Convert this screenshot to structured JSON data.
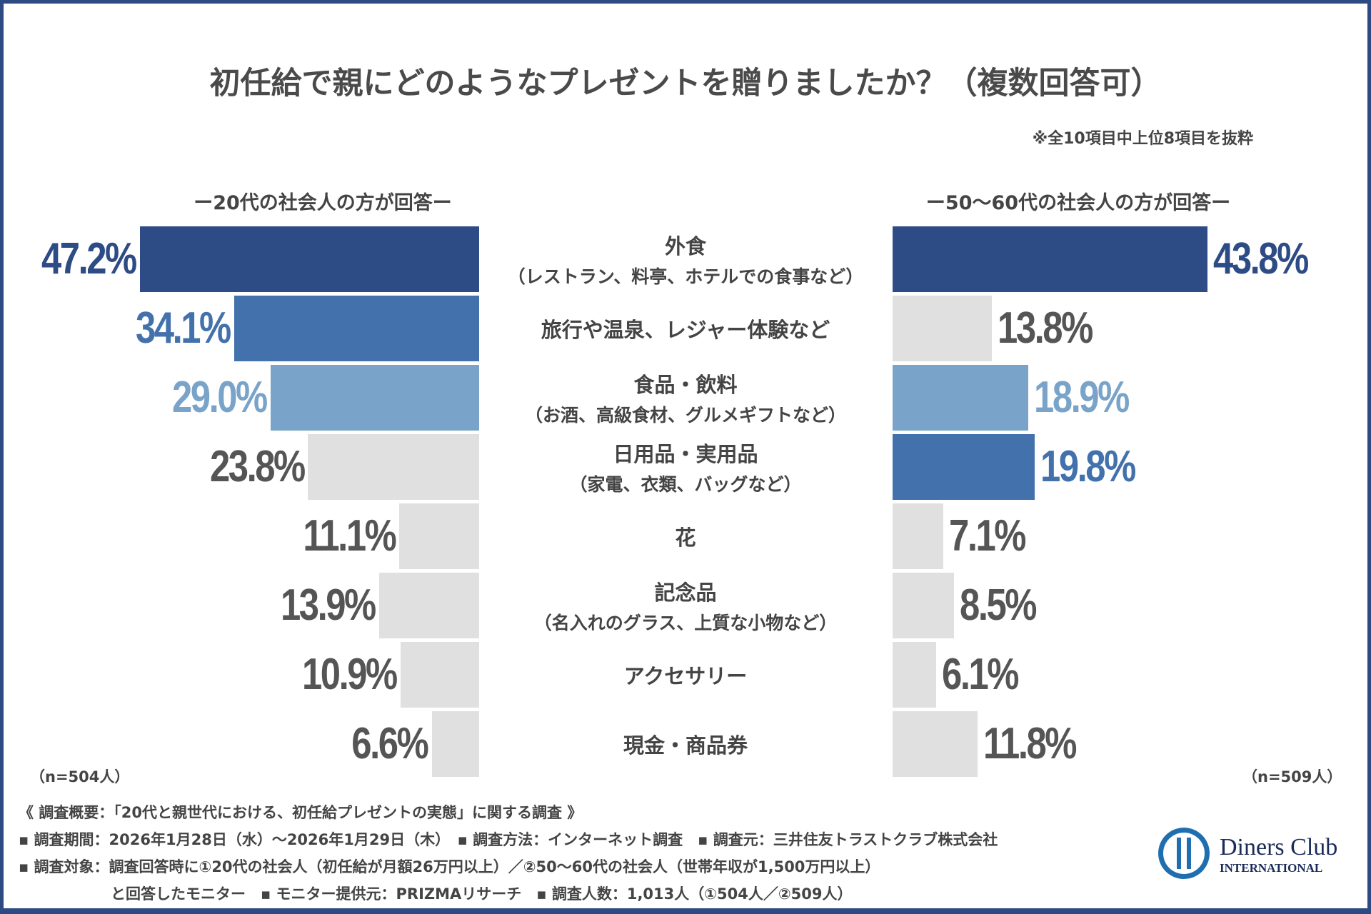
{
  "title": "初任給で親にどのようなプレゼントを贈りましたか？（複数回答可）",
  "note": "※全10項目中上位8項目を抜粋",
  "chart_data": {
    "type": "bar",
    "title": "初任給で親にどのようなプレゼントを贈りましたか？（複数回答可）",
    "categories": [
      {
        "main": "外食",
        "sub": "（レストラン、料亭、ホテルでの食事など）"
      },
      {
        "main": "旅行や温泉、レジャー体験など",
        "sub": ""
      },
      {
        "main": "食品・飲料",
        "sub": "（お酒、高級食材、グルメギフトなど）"
      },
      {
        "main": "日用品・実用品",
        "sub": "（家電、衣類、バッグなど）"
      },
      {
        "main": "花",
        "sub": ""
      },
      {
        "main": "記念品",
        "sub": "（名入れのグラス、上質な小物など）"
      },
      {
        "main": "アクセサリー",
        "sub": ""
      },
      {
        "main": "現金・商品券",
        "sub": ""
      }
    ],
    "series": [
      {
        "name": "ー20代の社会人の方が回答ー",
        "n": "（n=504人）",
        "values": [
          47.2,
          34.1,
          29.0,
          23.8,
          11.1,
          13.9,
          10.9,
          6.6
        ],
        "labels": [
          "47.2%",
          "34.1%",
          "29.0%",
          "23.8%",
          "11.1%",
          "13.9%",
          "10.9%",
          "6.6%"
        ],
        "colors": [
          "#2d4c85",
          "#4271ac",
          "#79a3c8",
          "#e0e0e0",
          "#e0e0e0",
          "#e0e0e0",
          "#e0e0e0",
          "#e0e0e0"
        ]
      },
      {
        "name": "ー50〜60代の社会人の方が回答ー",
        "n": "（n=509人）",
        "values": [
          43.8,
          13.8,
          18.9,
          19.8,
          7.1,
          8.5,
          6.1,
          11.8
        ],
        "labels": [
          "43.8%",
          "13.8%",
          "18.9%",
          "19.8%",
          "7.1%",
          "8.5%",
          "6.1%",
          "11.8%"
        ],
        "colors": [
          "#2d4c85",
          "#e0e0e0",
          "#79a3c8",
          "#4271ac",
          "#e0e0e0",
          "#e0e0e0",
          "#e0e0e0",
          "#e0e0e0"
        ]
      }
    ],
    "unit": "%"
  },
  "gray_text": "#555555",
  "footer": {
    "line1": "《 調査概要：「20代と親世代における、初任給プレゼントの実態」に関する調査 》",
    "line2": "▪ 調査期間：2026年1月28日（水）〜2026年1月29日（木）　▪ 調査方法：インターネット調査　▪ 調査元：三井住友トラストクラブ株式会社",
    "line3": "▪ 調査対象：調査回答時に①20代の社会人（初任給が月額26万円以上）／②50〜60代の社会人（世帯年収が1,500万円以上）",
    "line4": "と回答したモニター　▪ モニター提供元：PRIZMAリサーチ　▪ 調査人数：1,013人（①504人／②509人）"
  },
  "logo": {
    "line1": "Diners Club",
    "line2": "INTERNATIONAL"
  }
}
